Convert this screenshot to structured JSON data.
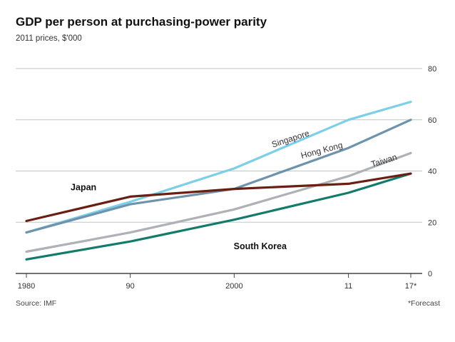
{
  "chart_data": {
    "type": "line",
    "title": "GDP per person at purchasing-power parity",
    "subtitle": "2011 prices, $'000",
    "x": [
      1980,
      1990,
      2000,
      2011,
      2017
    ],
    "x_tick_labels": [
      "1980",
      "90",
      "2000",
      "11",
      "17*"
    ],
    "y_ticks": [
      0,
      20,
      40,
      60,
      80
    ],
    "ylim": [
      0,
      80
    ],
    "xlim": [
      1980,
      2017
    ],
    "grid": "horizontal",
    "y_axis_side": "right",
    "series": [
      {
        "name": "Singapore",
        "color": "#7ccfe9",
        "label_style": "rotated",
        "values": [
          16,
          28,
          41,
          60,
          67
        ]
      },
      {
        "name": "Hong Kong",
        "color": "#6d93ad",
        "label_style": "rotated",
        "values": [
          16,
          27,
          33,
          49,
          60
        ]
      },
      {
        "name": "Taiwan",
        "color": "#aeb1b5",
        "label_style": "rotated",
        "values": [
          8.5,
          16,
          25,
          38,
          47
        ]
      },
      {
        "name": "Japan",
        "color": "#6b1f12",
        "label_style": "bold",
        "values": [
          20.5,
          30,
          33,
          35,
          39
        ]
      },
      {
        "name": "South Korea",
        "color": "#137b6a",
        "label_style": "bold",
        "values": [
          5.5,
          12.5,
          21,
          31.5,
          39
        ]
      }
    ],
    "source": "Source: IMF",
    "footnote": "*Forecast"
  }
}
